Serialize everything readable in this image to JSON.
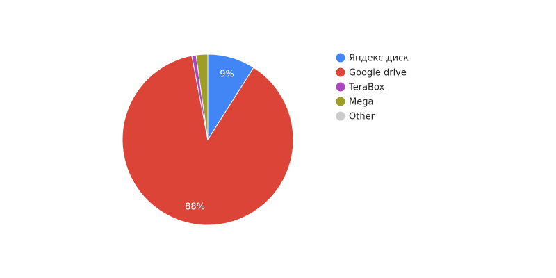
{
  "chart_data": {
    "type": "pie",
    "title": "",
    "legend_position": "right",
    "slices": [
      {
        "name": "Яндекс диск",
        "value": 9.0,
        "color": "#4285f4",
        "label": "9%"
      },
      {
        "name": "Google drive",
        "value": 88.0,
        "color": "#db4437",
        "label": "88%"
      },
      {
        "name": "TeraBox",
        "value": 0.8,
        "color": "#ab47bc",
        "label": ""
      },
      {
        "name": "Mega",
        "value": 2.2,
        "color": "#9e9e26",
        "label": ""
      },
      {
        "name": "Other",
        "value": 0.0,
        "color": "#cccccc",
        "label": ""
      }
    ]
  }
}
